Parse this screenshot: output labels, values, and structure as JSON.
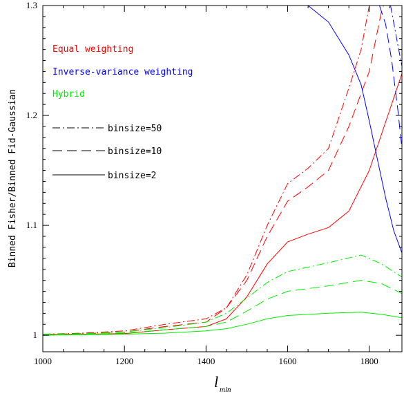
{
  "chart_data": {
    "type": "line",
    "xlabel": {
      "main": "l",
      "sub": "min"
    },
    "ylabel": "Binned Fisher/Binned Fid-Gaussian",
    "xlim": [
      1000,
      1880
    ],
    "ylim": [
      0.985,
      1.3
    ],
    "xticks": [
      1000,
      1200,
      1400,
      1600,
      1800
    ],
    "yticks": [
      1,
      1.1,
      1.2,
      1.3
    ],
    "ytick_labels": [
      "1",
      "1.1",
      "1.2",
      "1.3"
    ],
    "grid": false,
    "color_legend": [
      {
        "label": "Equal weighting",
        "color": "#ff0000"
      },
      {
        "label": "Inverse-variance weighting",
        "color": "#0000ff"
      },
      {
        "label": "Hybrid",
        "color": "#00ee00"
      }
    ],
    "style_legend": [
      {
        "label": "binsize=50",
        "dash": "dashdot"
      },
      {
        "label": "binsize=10",
        "dash": "dashed"
      },
      {
        "label": "binsize=2",
        "dash": "solid"
      }
    ],
    "series": [
      {
        "color": "#ff0000",
        "dash": "solid",
        "points": [
          [
            1000,
            1.0005
          ],
          [
            1100,
            1.001
          ],
          [
            1200,
            1.0015
          ],
          [
            1300,
            1.005
          ],
          [
            1400,
            1.008
          ],
          [
            1450,
            1.015
          ],
          [
            1500,
            1.035
          ],
          [
            1550,
            1.065
          ],
          [
            1600,
            1.085
          ],
          [
            1650,
            1.092
          ],
          [
            1700,
            1.098
          ],
          [
            1750,
            1.113
          ],
          [
            1800,
            1.15
          ],
          [
            1850,
            1.205
          ],
          [
            1880,
            1.238
          ]
        ]
      },
      {
        "color": "#ff0000",
        "dash": "dashed",
        "points": [
          [
            1000,
            1.001
          ],
          [
            1100,
            1.0015
          ],
          [
            1200,
            1.003
          ],
          [
            1300,
            1.008
          ],
          [
            1400,
            1.012
          ],
          [
            1450,
            1.025
          ],
          [
            1500,
            1.05
          ],
          [
            1550,
            1.09
          ],
          [
            1600,
            1.122
          ],
          [
            1650,
            1.135
          ],
          [
            1700,
            1.15
          ],
          [
            1750,
            1.19
          ],
          [
            1800,
            1.24
          ],
          [
            1830,
            1.295
          ],
          [
            1835,
            1.3
          ]
        ]
      },
      {
        "color": "#ff0000",
        "dash": "dashdot",
        "points": [
          [
            1000,
            1.001
          ],
          [
            1100,
            1.002
          ],
          [
            1200,
            1.004
          ],
          [
            1300,
            1.01
          ],
          [
            1400,
            1.015
          ],
          [
            1450,
            1.025
          ],
          [
            1500,
            1.055
          ],
          [
            1550,
            1.1
          ],
          [
            1600,
            1.138
          ],
          [
            1650,
            1.152
          ],
          [
            1700,
            1.17
          ],
          [
            1750,
            1.225
          ],
          [
            1780,
            1.26
          ],
          [
            1800,
            1.3
          ]
        ]
      },
      {
        "color": "#0000ff",
        "dash": "solid",
        "points": [
          [
            1650,
            1.3
          ],
          [
            1700,
            1.285
          ],
          [
            1750,
            1.255
          ],
          [
            1780,
            1.228
          ],
          [
            1800,
            1.195
          ],
          [
            1820,
            1.16
          ],
          [
            1840,
            1.125
          ],
          [
            1860,
            1.095
          ],
          [
            1880,
            1.075
          ]
        ]
      },
      {
        "color": "#0000ff",
        "dash": "dashed",
        "points": [
          [
            1825,
            1.3
          ],
          [
            1840,
            1.283
          ],
          [
            1855,
            1.25
          ],
          [
            1870,
            1.205
          ],
          [
            1880,
            1.17
          ]
        ]
      },
      {
        "color": "#0000ff",
        "dash": "dashdot",
        "points": [
          [
            1852,
            1.3
          ],
          [
            1862,
            1.28
          ],
          [
            1872,
            1.26
          ],
          [
            1880,
            1.245
          ]
        ]
      },
      {
        "color": "#00ee00",
        "dash": "solid",
        "points": [
          [
            1000,
            1.0
          ],
          [
            1100,
            1.0005
          ],
          [
            1200,
            1.001
          ],
          [
            1300,
            1.002
          ],
          [
            1400,
            1.004
          ],
          [
            1450,
            1.006
          ],
          [
            1500,
            1.01
          ],
          [
            1550,
            1.015
          ],
          [
            1600,
            1.018
          ],
          [
            1700,
            1.02
          ],
          [
            1780,
            1.021
          ],
          [
            1830,
            1.019
          ],
          [
            1880,
            1.016
          ]
        ]
      },
      {
        "color": "#00ee00",
        "dash": "dashed",
        "points": [
          [
            1000,
            1.0005
          ],
          [
            1100,
            1.001
          ],
          [
            1200,
            1.002
          ],
          [
            1300,
            1.005
          ],
          [
            1400,
            1.008
          ],
          [
            1450,
            1.012
          ],
          [
            1500,
            1.022
          ],
          [
            1550,
            1.033
          ],
          [
            1600,
            1.04
          ],
          [
            1700,
            1.045
          ],
          [
            1780,
            1.05
          ],
          [
            1830,
            1.047
          ],
          [
            1880,
            1.038
          ]
        ]
      },
      {
        "color": "#00ee00",
        "dash": "dashdot",
        "points": [
          [
            1000,
            1.001
          ],
          [
            1100,
            1.0015
          ],
          [
            1200,
            1.003
          ],
          [
            1300,
            1.007
          ],
          [
            1400,
            1.012
          ],
          [
            1450,
            1.02
          ],
          [
            1500,
            1.034
          ],
          [
            1550,
            1.048
          ],
          [
            1600,
            1.058
          ],
          [
            1700,
            1.066
          ],
          [
            1780,
            1.073
          ],
          [
            1830,
            1.065
          ],
          [
            1880,
            1.053
          ]
        ]
      }
    ]
  }
}
